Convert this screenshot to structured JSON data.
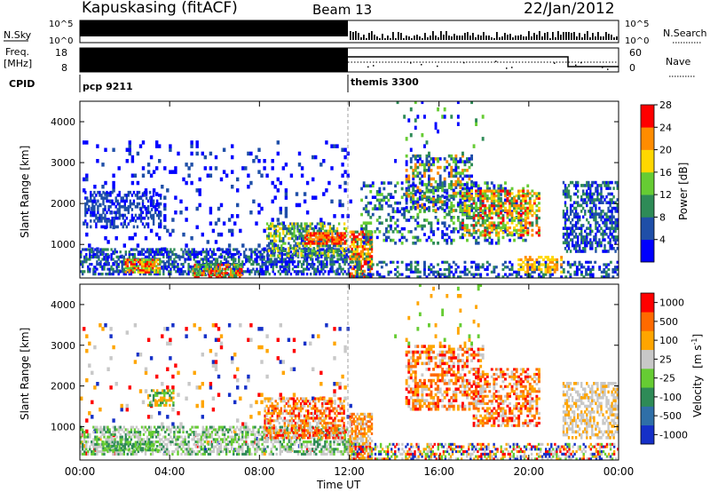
{
  "header": {
    "station": "Kapuskasing (fitACF)",
    "beam": "Beam 13",
    "date": "22/Jan/2012"
  },
  "top_panels": {
    "nsky_label": "N.Sky",
    "nsky_ticks": [
      "10^5",
      "10^0"
    ],
    "nsearch_label": "N.Search",
    "nsearch_ticks": [
      "10^5",
      "10^0"
    ],
    "freq_label": "Freq.",
    "freq_unit": "[MHz]",
    "freq_ticks": [
      "18",
      "8"
    ],
    "nave_label": "Nave",
    "nave_ticks": [
      "60",
      "0"
    ],
    "cpid_label": "CPID",
    "cpid_segments": [
      {
        "name": "pcp 9211",
        "start_ut": 0
      },
      {
        "name": "themis 3300",
        "start_ut": 12
      }
    ]
  },
  "chart_data": [
    {
      "type": "heatmap",
      "ylabel": "Slant Range [km]",
      "yticks": [
        "1000",
        "2000",
        "3000",
        "4000"
      ],
      "ylim": [
        180,
        4500
      ],
      "xlim": [
        0,
        24
      ],
      "colorbar": {
        "label": "Power [dB]",
        "ticks": [
          "4",
          "8",
          "12",
          "16",
          "20",
          "24",
          "28"
        ],
        "colors": [
          "#0000ff",
          "#1f4fa8",
          "#2e8b57",
          "#66cc33",
          "#ffd700",
          "#ff8c00",
          "#ff0000"
        ]
      }
    },
    {
      "type": "heatmap",
      "ylabel": "Slant Range [km]",
      "yticks": [
        "1000",
        "2000",
        "3000",
        "4000"
      ],
      "ylim": [
        180,
        4500
      ],
      "xlim": [
        0,
        24
      ],
      "xlabel": "Time UT",
      "xticks": [
        "00:00",
        "04:00",
        "08:00",
        "12:00",
        "16:00",
        "20:00",
        "00:00"
      ],
      "colorbar": {
        "label": "Velocity",
        "unit_base": "[m s",
        "unit_exp": "-1",
        "unit_end": "]",
        "ticks": [
          "1000",
          "500",
          "100",
          "25",
          "-25",
          "-100",
          "-500",
          "-1000"
        ],
        "colors": [
          "#1530c8",
          "#2f6fa8",
          "#2e8b57",
          "#66cc33",
          "#c8c8c8",
          "#ffa500",
          "#ff6a00",
          "#ff0000"
        ]
      }
    }
  ]
}
